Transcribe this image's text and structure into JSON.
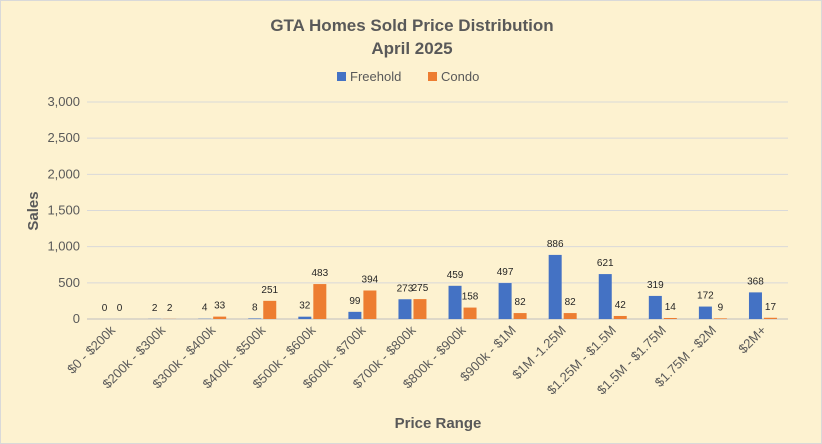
{
  "chart_data": {
    "type": "bar",
    "title": "GTA Homes Sold Price Distribution",
    "subtitle": "April 2025",
    "xlabel": "Price Range",
    "ylabel": "Sales",
    "ylim": [
      0,
      3000
    ],
    "yticks": [
      0,
      500,
      1000,
      1500,
      2000,
      2500,
      3000
    ],
    "ytick_labels": [
      "0",
      "500",
      "1,000",
      "1,500",
      "2,000",
      "2,500",
      "3,000"
    ],
    "grid": true,
    "legend_position": "top",
    "categories": [
      "$0 - $200k",
      "$200k - $300k",
      "$300k - $400k",
      "$400k - $500k",
      "$500k - $600k",
      "$600k - $700k",
      "$700k - $800k",
      "$800k - $900k",
      "$900k - $1M",
      "$1M -1.25M",
      "$1.25M - $1.5M",
      "$1.5M - $1.75M",
      "$1.75M - $2M",
      "$2M+"
    ],
    "series": [
      {
        "name": "Freehold",
        "color": "#4472c4",
        "values": [
          0,
          2,
          4,
          8,
          32,
          99,
          273,
          459,
          497,
          886,
          621,
          319,
          172,
          368
        ]
      },
      {
        "name": "Condo",
        "color": "#ed7d31",
        "values": [
          0,
          2,
          33,
          251,
          483,
          394,
          275,
          158,
          82,
          82,
          42,
          14,
          9,
          17
        ]
      }
    ]
  }
}
